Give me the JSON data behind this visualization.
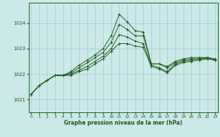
{
  "background_color": "#cce8e8",
  "grid_color": "#99cccc",
  "line_color": "#1a5c1a",
  "xlabel": "Graphe pression niveau de la mer (hPa)",
  "ylim": [
    1020.5,
    1024.8
  ],
  "yticks": [
    1021,
    1022,
    1023,
    1024
  ],
  "xlim": [
    -0.3,
    23.3
  ],
  "xticks": [
    0,
    1,
    2,
    3,
    4,
    5,
    6,
    7,
    8,
    9,
    10,
    11,
    12,
    13,
    14,
    15,
    16,
    17,
    18,
    19,
    20,
    21,
    22,
    23
  ],
  "line1": [
    1021.2,
    1021.55,
    1021.75,
    1021.95,
    1021.95,
    1022.1,
    1022.35,
    1022.55,
    1022.75,
    1023.0,
    1023.5,
    1024.35,
    1024.05,
    1023.7,
    1023.65,
    1022.4,
    1022.4,
    1022.3,
    1022.5,
    1022.6,
    1022.65,
    1022.65,
    1022.65,
    1022.6
  ],
  "line2": [
    1021.2,
    1021.55,
    1021.75,
    1021.95,
    1021.95,
    1022.05,
    1022.25,
    1022.45,
    1022.65,
    1022.85,
    1023.25,
    1023.95,
    1023.75,
    1023.5,
    1023.5,
    1022.4,
    1022.4,
    1022.25,
    1022.45,
    1022.55,
    1022.6,
    1022.6,
    1022.65,
    1022.55
  ],
  "line3": [
    1021.2,
    1021.55,
    1021.75,
    1021.95,
    1021.95,
    1022.0,
    1022.15,
    1022.3,
    1022.5,
    1022.7,
    1023.0,
    1023.55,
    1023.45,
    1023.3,
    1023.2,
    1022.35,
    1022.25,
    1022.1,
    1022.4,
    1022.5,
    1022.55,
    1022.6,
    1022.6,
    1022.55
  ],
  "line4": [
    1021.2,
    1021.55,
    1021.75,
    1021.95,
    1021.95,
    1021.95,
    1022.1,
    1022.2,
    1022.4,
    1022.6,
    1022.9,
    1023.2,
    1023.2,
    1023.1,
    1023.05,
    1022.3,
    1022.2,
    1022.05,
    1022.35,
    1022.45,
    1022.5,
    1022.55,
    1022.6,
    1022.55
  ]
}
